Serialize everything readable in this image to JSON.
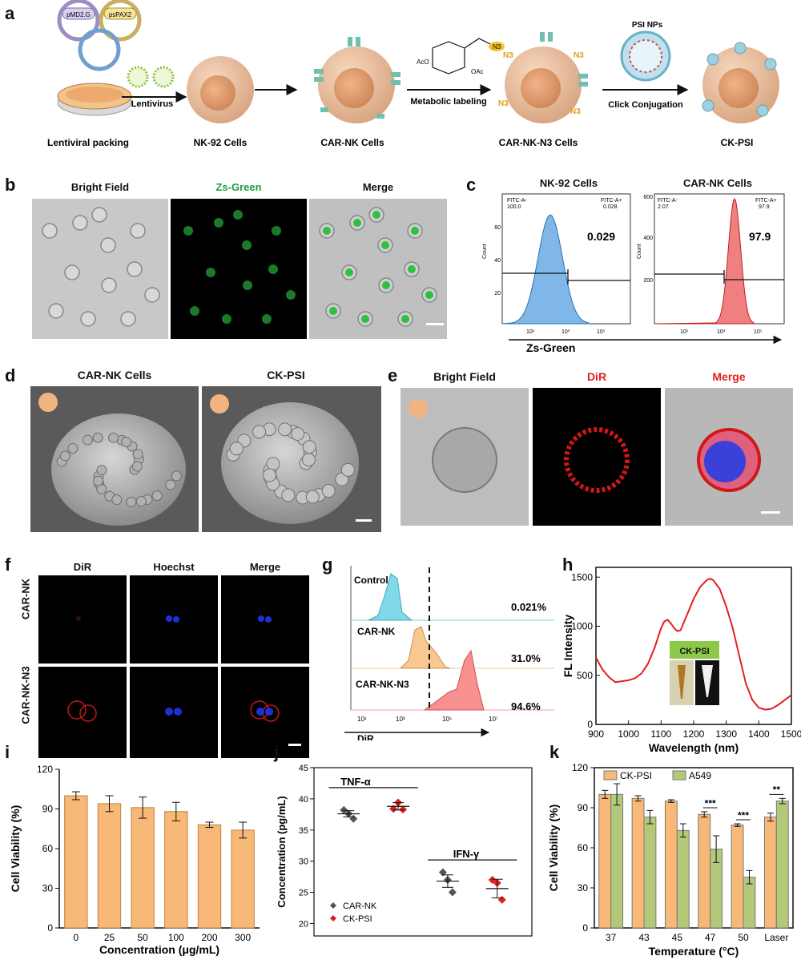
{
  "panels": {
    "a": {
      "label": "a",
      "plasmids": [
        "pMD2.G",
        "psPAX2"
      ],
      "steps": [
        "Lentiviral packing",
        "NK-92 Cells",
        "CAR-NK Cells",
        "CAR-NK-N3 Cells",
        "CK-PSI"
      ],
      "arrows": [
        "Lentivirus",
        "Metabolic labeling",
        "Click Conjugation"
      ],
      "psi_label": "PSI NPs",
      "azide": "N3"
    },
    "b": {
      "label": "b",
      "titles": [
        "Bright Field",
        "Zs-Green",
        "Merge"
      ]
    },
    "c": {
      "label": "c",
      "titles": [
        "NK-92 Cells",
        "CAR-NK Cells"
      ],
      "xlabel": "Zs-Green",
      "ylabel": "Count",
      "gate_neg": "FITC-A-",
      "gate_pos": "FITC-A+",
      "nk92": {
        "neg": "100.0",
        "pos": "0.028",
        "big": "0.029"
      },
      "carnk": {
        "neg": "2.07",
        "pos": "97.9",
        "big": "97.9"
      }
    },
    "d": {
      "label": "d",
      "titles": [
        "CAR-NK Cells",
        "CK-PSI"
      ]
    },
    "e": {
      "label": "e",
      "titles": [
        "Bright Field",
        "DiR",
        "Merge"
      ]
    },
    "f": {
      "label": "f",
      "cols": [
        "DiR",
        "Hoechst",
        "Merge"
      ],
      "rows": [
        "CAR-NK",
        "CAR-NK-N3"
      ]
    },
    "g": {
      "label": "g",
      "rows": [
        "Control",
        "CAR-NK",
        "CAR-NK-N3"
      ],
      "percents": [
        "0.021%",
        "31.0%",
        "94.6%"
      ],
      "xlabel": "DiR"
    },
    "h": {
      "label": "h",
      "inset": "CK-PSI"
    },
    "i": {
      "label": "i"
    },
    "j": {
      "label": "j",
      "groups": [
        "TNF-α",
        "IFN-γ"
      ]
    },
    "k": {
      "label": "k"
    }
  },
  "chart_data": [
    {
      "panel": "h",
      "type": "line",
      "xlabel": "Wavelength (nm)",
      "ylabel": "FL Intensity",
      "xlim": [
        900,
        1500
      ],
      "ylim": [
        0,
        1600
      ],
      "xticks": [
        900,
        1000,
        1100,
        1200,
        1300,
        1400,
        1500
      ],
      "yticks": [
        0,
        500,
        1000,
        1500
      ],
      "color": "#e02020",
      "x": [
        900,
        920,
        940,
        960,
        980,
        1000,
        1020,
        1040,
        1060,
        1080,
        1100,
        1110,
        1120,
        1130,
        1140,
        1150,
        1160,
        1180,
        1200,
        1220,
        1240,
        1250,
        1260,
        1280,
        1300,
        1320,
        1340,
        1360,
        1380,
        1400,
        1420,
        1440,
        1460,
        1480,
        1500
      ],
      "y": [
        680,
        560,
        480,
        430,
        440,
        450,
        470,
        520,
        620,
        780,
        980,
        1050,
        1065,
        1030,
        980,
        950,
        960,
        1120,
        1280,
        1400,
        1470,
        1485,
        1470,
        1380,
        1200,
        980,
        700,
        420,
        250,
        170,
        150,
        160,
        200,
        250,
        300
      ]
    },
    {
      "panel": "i",
      "type": "bar",
      "xlabel": "Concentration (μg/mL)",
      "ylabel": "Cell Viability (%)",
      "ylim": [
        0,
        120
      ],
      "yticks": [
        0,
        30,
        60,
        90,
        120
      ],
      "color": "#f8b878",
      "categories": [
        "0",
        "25",
        "50",
        "100",
        "200",
        "300"
      ],
      "values": [
        100,
        94,
        91,
        88,
        78,
        74
      ],
      "errors": [
        3,
        6,
        8,
        7,
        2,
        6
      ]
    },
    {
      "panel": "j",
      "type": "scatter",
      "ylabel": "Concentration (pg/mL)",
      "ylim": [
        18,
        45
      ],
      "yticks": [
        20,
        25,
        30,
        35,
        40,
        45
      ],
      "series": [
        {
          "name": "CAR-NK",
          "color": "#555555",
          "points": [
            [
              1,
              38.2
            ],
            [
              1,
              37.6
            ],
            [
              1,
              36.8
            ],
            [
              3,
              28.2
            ],
            [
              3,
              27.0
            ],
            [
              3,
              25.0
            ]
          ],
          "means": [
            [
              1,
              37.6
            ],
            [
              3,
              26.8
            ]
          ],
          "sem": [
            0.5,
            1.0
          ]
        },
        {
          "name": "CK-PSI",
          "color": "#e02020",
          "points": [
            [
              2,
              38.4
            ],
            [
              2,
              39.4
            ],
            [
              2,
              38.3
            ],
            [
              4,
              27.0
            ],
            [
              4,
              26.5
            ],
            [
              4,
              23.8
            ]
          ],
          "means": [
            [
              2,
              38.8
            ],
            [
              4,
              25.6
            ]
          ],
          "sem": [
            0.6,
            1.5
          ]
        }
      ]
    },
    {
      "panel": "k",
      "type": "bar",
      "xlabel": "Temperature (°C)",
      "ylabel": "Cell Viability (%)",
      "ylim": [
        0,
        120
      ],
      "yticks": [
        0,
        30,
        60,
        90,
        120
      ],
      "categories": [
        "37",
        "43",
        "45",
        "47",
        "50",
        "Laser"
      ],
      "series": [
        {
          "name": "CK-PSI",
          "color": "#f8b878",
          "values": [
            100,
            97,
            95,
            85,
            77,
            83
          ],
          "errors": [
            3,
            2,
            1,
            2,
            1,
            3
          ]
        },
        {
          "name": "A549",
          "color": "#b4c87a",
          "values": [
            100,
            83,
            73,
            59,
            38,
            95
          ],
          "errors": [
            8,
            5,
            5,
            10,
            5,
            2
          ]
        }
      ],
      "significance": [
        "",
        "",
        "",
        "***",
        "***",
        "**"
      ]
    }
  ]
}
